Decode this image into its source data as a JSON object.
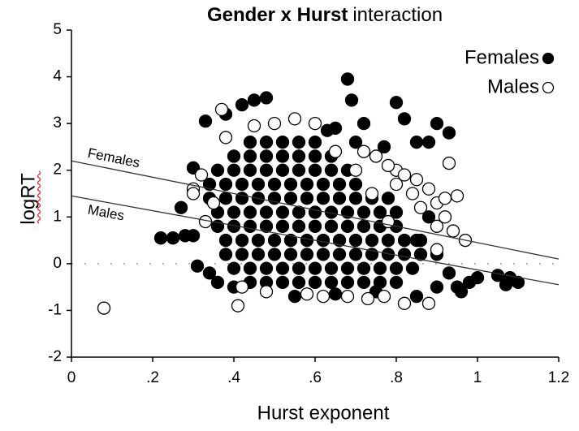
{
  "chart_data": {
    "type": "scatter",
    "title_bold": "Gender x Hurst",
    "title_rest": "interaction",
    "xlabel": "Hurst exponent",
    "ylabel": "logRT",
    "xlim": [
      0,
      1.2
    ],
    "ylim": [
      -2,
      5
    ],
    "xticks": [
      0,
      {
        "value": 0.2,
        "label": ".2"
      },
      {
        "value": 0.4,
        "label": ".4"
      },
      {
        "value": 0.6,
        "label": ".6"
      },
      {
        "value": 0.8,
        "label": ".8"
      },
      1,
      1.2
    ],
    "yticks": [
      -2,
      -1,
      0,
      1,
      2,
      3,
      4,
      5
    ],
    "legend": "top-right",
    "reference_line_y": 0,
    "fit_lines": [
      {
        "label": "Females",
        "x": [
          0,
          1.2
        ],
        "y": [
          2.2,
          0.1
        ]
      },
      {
        "label": "Males",
        "x": [
          0,
          1.2
        ],
        "y": [
          1.45,
          -0.45
        ]
      }
    ],
    "series": [
      {
        "name": "Females",
        "color": "#000000",
        "marker": "filled",
        "x": [
          0.44,
          0.48,
          0.52,
          0.56,
          0.6,
          0.4,
          0.44,
          0.48,
          0.52,
          0.56,
          0.6,
          0.64,
          0.36,
          0.4,
          0.44,
          0.48,
          0.52,
          0.56,
          0.6,
          0.64,
          0.68,
          0.34,
          0.38,
          0.42,
          0.46,
          0.5,
          0.54,
          0.58,
          0.62,
          0.66,
          0.7,
          0.34,
          0.38,
          0.42,
          0.46,
          0.5,
          0.54,
          0.58,
          0.62,
          0.66,
          0.7,
          0.74,
          0.78,
          0.36,
          0.4,
          0.44,
          0.48,
          0.52,
          0.56,
          0.6,
          0.64,
          0.68,
          0.72,
          0.76,
          0.8,
          0.36,
          0.4,
          0.44,
          0.48,
          0.52,
          0.56,
          0.6,
          0.64,
          0.68,
          0.72,
          0.76,
          0.8,
          0.38,
          0.42,
          0.46,
          0.5,
          0.54,
          0.58,
          0.62,
          0.66,
          0.7,
          0.74,
          0.78,
          0.82,
          0.86,
          0.38,
          0.42,
          0.46,
          0.5,
          0.54,
          0.58,
          0.62,
          0.66,
          0.7,
          0.74,
          0.78,
          0.82,
          0.86,
          0.4,
          0.44,
          0.48,
          0.52,
          0.56,
          0.6,
          0.64,
          0.68,
          0.72,
          0.76,
          0.8,
          0.84,
          0.44,
          0.48,
          0.52,
          0.56,
          0.6,
          0.64,
          0.68,
          0.72,
          0.76,
          0.8,
          0.22,
          0.25,
          0.28,
          0.3,
          0.27,
          0.3,
          0.33,
          0.38,
          0.42,
          0.45,
          0.48,
          0.68,
          0.69,
          0.72,
          0.8,
          0.82,
          0.85,
          0.88,
          0.9,
          0.93,
          0.65,
          0.63,
          0.7,
          0.77,
          0.31,
          0.34,
          0.36,
          0.4,
          0.55,
          0.65,
          0.75,
          0.85,
          0.9,
          0.95,
          0.98,
          1.0,
          1.05,
          1.08,
          1.1,
          1.07,
          0.96,
          0.93,
          0.9,
          0.85,
          0.88
        ],
        "y": [
          2.6,
          2.6,
          2.6,
          2.6,
          2.6,
          2.3,
          2.3,
          2.3,
          2.3,
          2.3,
          2.3,
          2.3,
          2.0,
          2.0,
          2.0,
          2.0,
          2.0,
          2.0,
          2.0,
          2.0,
          2.0,
          1.7,
          1.7,
          1.7,
          1.7,
          1.7,
          1.7,
          1.7,
          1.7,
          1.7,
          1.7,
          1.4,
          1.4,
          1.4,
          1.4,
          1.4,
          1.4,
          1.4,
          1.4,
          1.4,
          1.4,
          1.4,
          1.4,
          1.1,
          1.1,
          1.1,
          1.1,
          1.1,
          1.1,
          1.1,
          1.1,
          1.1,
          1.1,
          1.1,
          1.1,
          0.8,
          0.8,
          0.8,
          0.8,
          0.8,
          0.8,
          0.8,
          0.8,
          0.8,
          0.8,
          0.8,
          0.8,
          0.5,
          0.5,
          0.5,
          0.5,
          0.5,
          0.5,
          0.5,
          0.5,
          0.5,
          0.5,
          0.5,
          0.5,
          0.5,
          0.2,
          0.2,
          0.2,
          0.2,
          0.2,
          0.2,
          0.2,
          0.2,
          0.2,
          0.2,
          0.2,
          0.2,
          0.2,
          -0.1,
          -0.1,
          -0.1,
          -0.1,
          -0.1,
          -0.1,
          -0.1,
          -0.1,
          -0.1,
          -0.1,
          -0.1,
          -0.1,
          -0.4,
          -0.4,
          -0.4,
          -0.4,
          -0.4,
          -0.4,
          -0.4,
          -0.4,
          -0.4,
          -0.4,
          0.55,
          0.55,
          0.6,
          0.6,
          1.2,
          2.05,
          3.05,
          3.2,
          3.4,
          3.5,
          3.55,
          3.95,
          3.5,
          3.0,
          3.45,
          3.1,
          2.6,
          2.6,
          3.0,
          2.8,
          2.9,
          2.85,
          2.6,
          2.5,
          -0.05,
          -0.2,
          -0.4,
          -0.5,
          -0.7,
          -0.65,
          -0.6,
          -0.7,
          -0.5,
          -0.5,
          -0.4,
          -0.3,
          -0.25,
          -0.3,
          -0.4,
          -0.45,
          -0.6,
          -0.2,
          0.2,
          0.5,
          1.0
        ]
      },
      {
        "name": "Males",
        "color": "#000000",
        "marker": "open",
        "x": [
          0.08,
          0.41,
          0.37,
          0.55,
          0.6,
          0.3,
          0.32,
          0.3,
          0.82,
          0.88,
          0.8,
          0.82,
          0.85,
          0.88,
          0.9,
          0.92,
          0.93,
          0.95,
          0.92,
          0.9,
          0.86,
          0.84,
          0.8,
          0.78,
          0.75,
          0.72,
          0.97,
          0.94,
          0.78,
          0.74,
          0.7,
          0.65,
          0.9,
          0.42,
          0.48,
          0.58,
          0.68,
          0.73,
          0.77,
          0.62,
          0.35,
          0.33,
          0.38,
          0.5,
          0.45
        ],
        "y": [
          -0.95,
          -0.9,
          3.3,
          3.1,
          3.0,
          1.6,
          1.9,
          1.5,
          -0.85,
          -0.85,
          2.0,
          1.9,
          1.8,
          1.6,
          1.3,
          1.4,
          2.15,
          1.45,
          1.0,
          0.8,
          1.2,
          1.5,
          1.7,
          2.1,
          2.3,
          2.4,
          0.5,
          0.7,
          0.9,
          1.5,
          2.0,
          2.4,
          0.3,
          -0.5,
          -0.6,
          -0.65,
          -0.7,
          -0.75,
          -0.7,
          -0.7,
          1.3,
          0.9,
          2.7,
          3.0,
          2.95
        ]
      }
    ]
  }
}
